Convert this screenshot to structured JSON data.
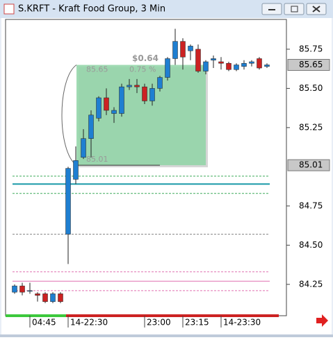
{
  "window_title": "S.KRFT - Kraft Food Group, 3 Min",
  "chart_data": {
    "type": "candlestick",
    "categories": [
      null,
      null,
      "04:45",
      null,
      null,
      null,
      null,
      "14-22:30",
      null,
      null,
      null,
      null,
      null,
      null,
      null,
      null,
      null,
      "23:00",
      null,
      null,
      null,
      null,
      "23:15",
      null,
      null,
      null,
      null,
      "14-23:30",
      null,
      null,
      null,
      null,
      null,
      null
    ],
    "open": [
      84.2,
      84.24,
      84.21,
      84.19,
      84.19,
      84.14,
      84.19,
      84.57,
      84.92,
      85.06,
      85.18,
      85.31,
      85.44,
      85.34,
      85.34,
      85.51,
      85.52,
      85.51,
      85.42,
      85.5,
      85.57,
      85.69,
      85.8,
      85.74,
      85.75,
      85.61,
      85.68,
      85.67,
      85.66,
      85.62,
      85.64,
      85.66,
      85.69,
      85.64
    ],
    "high": [
      84.25,
      84.26,
      84.26,
      84.2,
      84.2,
      84.2,
      84.2,
      85.0,
      85.13,
      85.24,
      85.36,
      85.45,
      85.5,
      85.38,
      85.53,
      85.56,
      85.56,
      85.53,
      85.53,
      85.58,
      85.7,
      85.88,
      85.82,
      85.78,
      85.78,
      85.68,
      85.71,
      85.7,
      85.67,
      85.66,
      85.68,
      85.68,
      85.7,
      85.66
    ],
    "low": [
      84.19,
      84.18,
      84.19,
      84.14,
      84.13,
      84.13,
      84.13,
      84.38,
      84.89,
      85.05,
      85.06,
      85.29,
      85.33,
      85.28,
      85.32,
      85.49,
      85.47,
      85.4,
      85.39,
      85.48,
      85.55,
      85.65,
      85.62,
      85.68,
      85.6,
      85.59,
      85.63,
      85.62,
      85.61,
      85.61,
      85.62,
      85.64,
      85.62,
      85.63
    ],
    "close": [
      84.24,
      84.2,
      84.21,
      84.18,
      84.14,
      84.19,
      84.14,
      84.99,
      85.04,
      85.18,
      85.33,
      85.44,
      85.36,
      85.36,
      85.51,
      85.52,
      85.51,
      85.42,
      85.5,
      85.57,
      85.69,
      85.8,
      85.7,
      85.77,
      85.61,
      85.67,
      85.69,
      85.66,
      85.62,
      85.65,
      85.66,
      85.67,
      85.63,
      85.65
    ],
    "up_color": "#1f7fd1",
    "down_color": "#cc2222",
    "ylim": [
      84.05,
      85.94
    ],
    "yticks": [
      {
        "value": 84.25,
        "label": "84.25"
      },
      {
        "value": 84.5,
        "label": "84.50"
      },
      {
        "value": 84.75,
        "label": "84.75"
      },
      {
        "value": 85.25,
        "label": "85.25"
      },
      {
        "value": 85.5,
        "label": "85.50"
      },
      {
        "value": 85.75,
        "label": "85.75"
      }
    ],
    "price_markers": [
      85.65,
      85.01
    ],
    "levels": [
      {
        "value": 84.94,
        "color": "#3caa5a",
        "style": "dashed"
      },
      {
        "value": 84.89,
        "color": "#1a9aa8",
        "style": "solid"
      },
      {
        "value": 84.83,
        "color": "#3caa5a",
        "style": "dashed"
      },
      {
        "value": 84.57,
        "color": "#888888",
        "style": "dashed"
      },
      {
        "value": 84.33,
        "color": "#e070b0",
        "style": "dashed"
      },
      {
        "value": 84.27,
        "color": "#e070b0",
        "style": "solid"
      },
      {
        "value": 84.21,
        "color": "#e070b0",
        "style": "dashed"
      }
    ],
    "measure": {
      "top": 85.65,
      "bottom": 85.01,
      "change": "$0.64",
      "percent": "0.75 %"
    }
  }
}
